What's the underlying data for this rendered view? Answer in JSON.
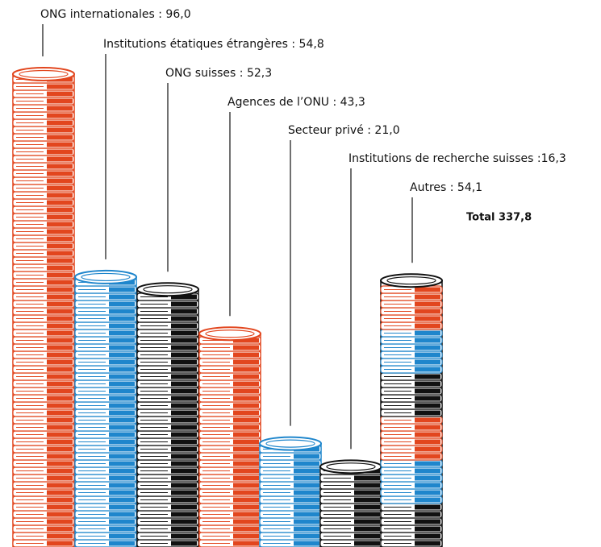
{
  "chart_data": {
    "type": "bar",
    "categories": [
      "ONG internationales : 96,0",
      "Institutions étatiques étrangères : 54,8",
      "ONG suisses : 52,3",
      "Agences de l’ONU : 43,3",
      "Secteur privé : 21,0",
      "Institutions de recherche suisses :16,3",
      "Autres : 54,1"
    ],
    "values": [
      96.0,
      54.8,
      52.3,
      43.3,
      21.0,
      16.3,
      54.1
    ],
    "colors": [
      [
        "#e2461e"
      ],
      [
        "#1f86cc"
      ],
      [
        "#111111"
      ],
      [
        "#e2461e"
      ],
      [
        "#1f86cc"
      ],
      [
        "#111111"
      ],
      [
        "#111111",
        "#1f86cc",
        "#e2461e",
        "#111111",
        "#1f86cc",
        "#e2461e"
      ]
    ],
    "ylim": [
      0,
      96
    ],
    "annotation": "Total 337,8"
  }
}
